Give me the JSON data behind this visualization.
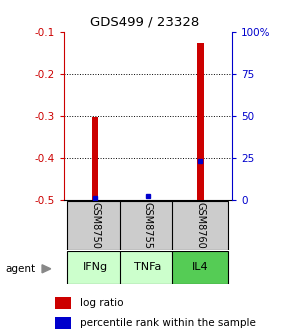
{
  "title": "GDS499 / 23328",
  "samples": [
    "GSM8750",
    "GSM8755",
    "GSM8760"
  ],
  "agents": [
    "IFNg",
    "TNFa",
    "IL4"
  ],
  "log_ratios": [
    -0.302,
    -0.5,
    -0.127
  ],
  "log_ratio_baseline": -0.5,
  "percentile_ranks": [
    1.0,
    2.5,
    23.0
  ],
  "ylim_left": [
    -0.5,
    -0.1
  ],
  "ylim_right": [
    0,
    100
  ],
  "yticks_left": [
    -0.5,
    -0.4,
    -0.3,
    -0.2,
    -0.1
  ],
  "yticks_right": [
    0,
    25,
    50,
    75,
    100
  ],
  "ytick_labels_right": [
    "0",
    "25",
    "50",
    "75",
    "100%"
  ],
  "bar_color": "#cc0000",
  "dot_color": "#0000cc",
  "agent_colors": [
    "#ccffcc",
    "#ccffcc",
    "#55cc55"
  ],
  "gsm_bg_color": "#cccccc",
  "left_axis_color": "#cc0000",
  "right_axis_color": "#0000cc",
  "bar_width": 0.12,
  "x_positions": [
    1,
    2,
    3
  ]
}
